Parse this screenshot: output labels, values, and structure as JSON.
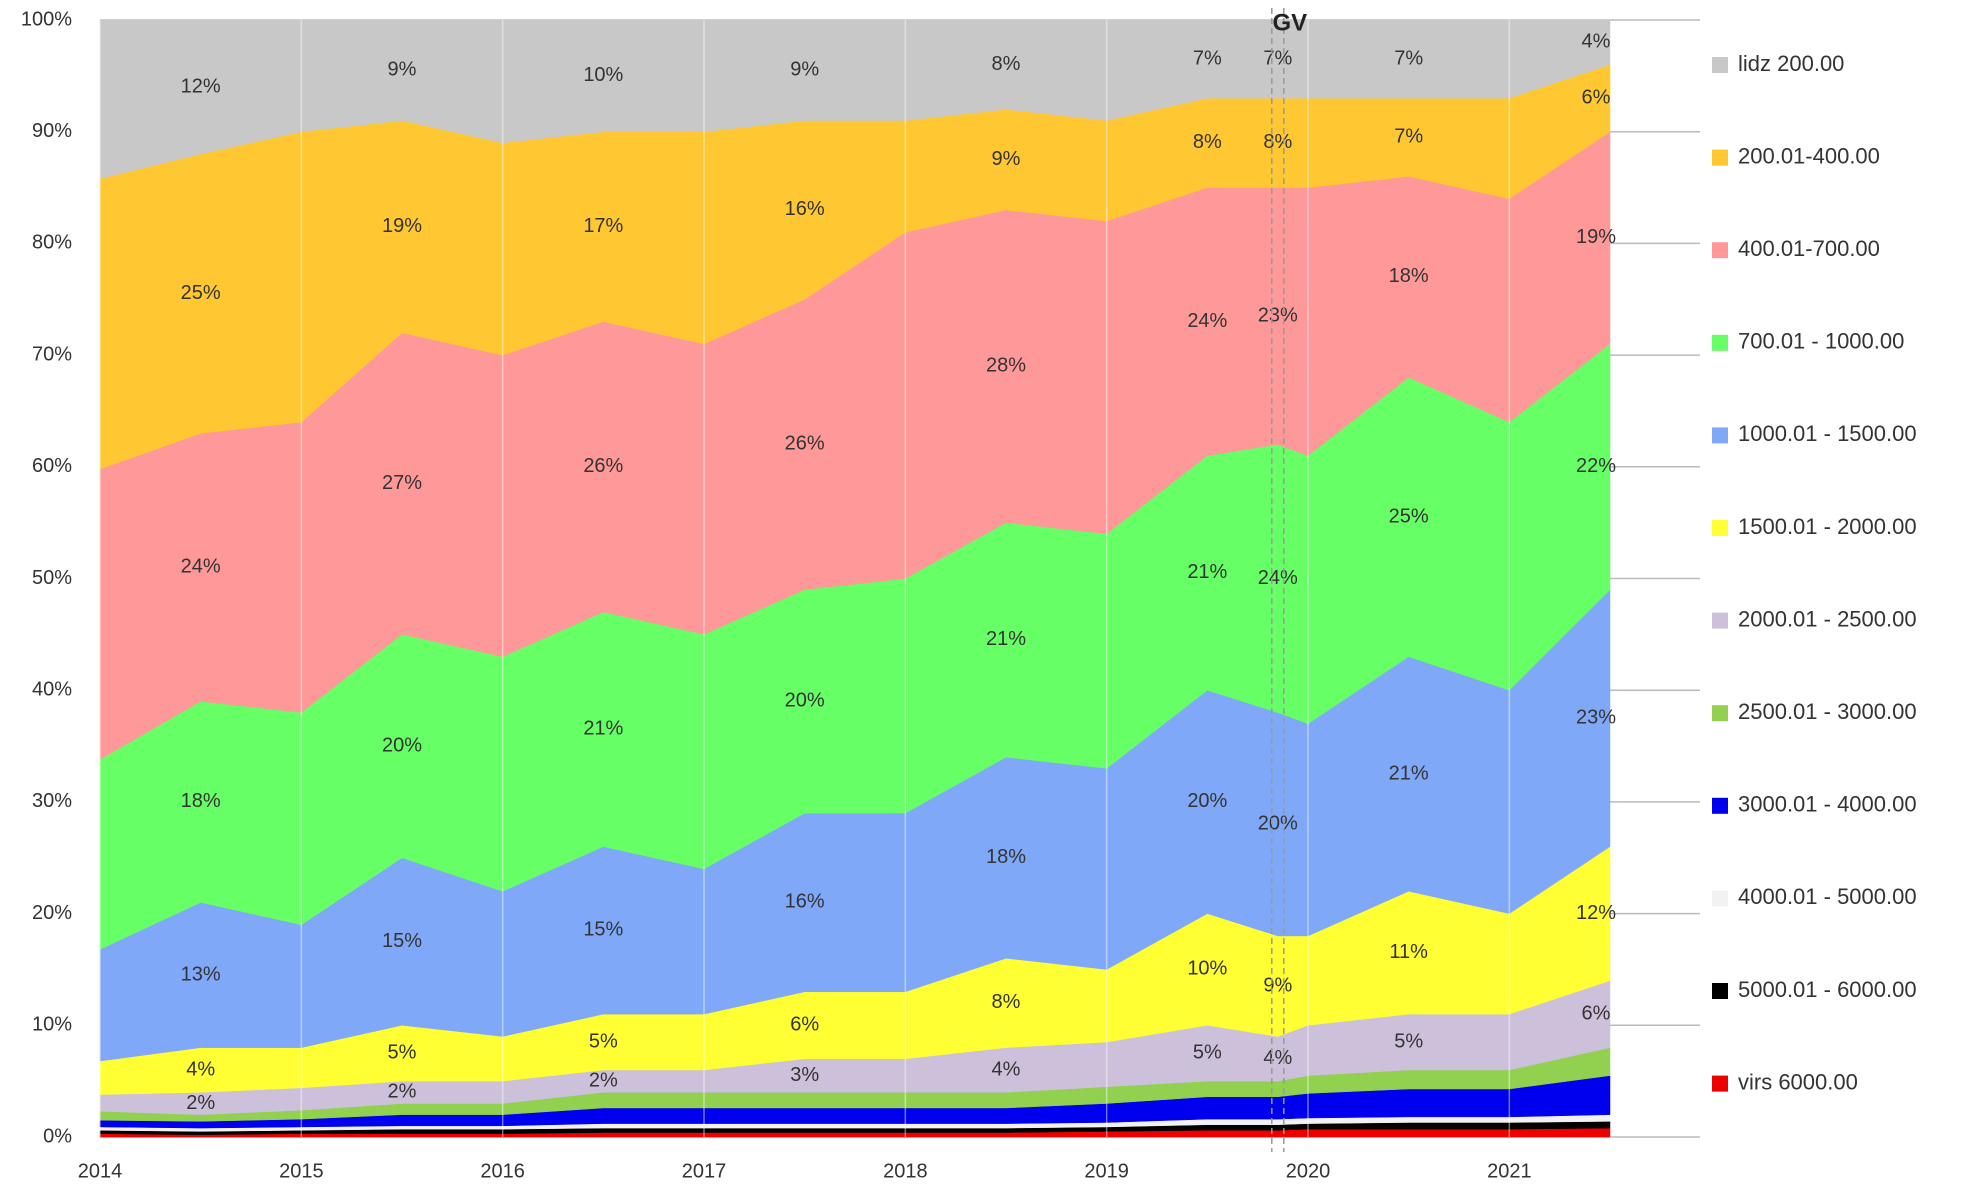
{
  "chart_data": {
    "type": "stacked_area",
    "x": [
      2014,
      2014.5,
      2015,
      2015.5,
      2016,
      2016.5,
      2017,
      2017.5,
      2018,
      2018.5,
      2019,
      2019.5,
      2019.85,
      2020,
      2020.5,
      2021,
      2021.5
    ],
    "series": [
      {
        "name": "virs 6000.00",
        "color": "#ee0000",
        "values": [
          0.3,
          0.2,
          0.3,
          0.3,
          0.3,
          0.4,
          0.4,
          0.4,
          0.4,
          0.4,
          0.5,
          0.6,
          0.6,
          0.7,
          0.7,
          0.7,
          0.8
        ]
      },
      {
        "name": "5000.01 - 6000.00",
        "color": "#000000",
        "values": [
          0.3,
          0.3,
          0.3,
          0.4,
          0.4,
          0.4,
          0.4,
          0.4,
          0.4,
          0.4,
          0.4,
          0.5,
          0.5,
          0.5,
          0.6,
          0.6,
          0.6
        ]
      },
      {
        "name": "4000.01 - 5000.00",
        "color": "#f2f2f2",
        "values": [
          0.3,
          0.3,
          0.3,
          0.3,
          0.3,
          0.4,
          0.4,
          0.4,
          0.4,
          0.4,
          0.4,
          0.5,
          0.5,
          0.5,
          0.5,
          0.5,
          0.6
        ]
      },
      {
        "name": "3000.01 - 4000.00",
        "color": "#0000ee",
        "values": [
          0.6,
          0.6,
          0.7,
          1,
          1,
          1.4,
          1.4,
          1.4,
          1.4,
          1.4,
          1.7,
          2,
          2,
          2.2,
          2.5,
          2.5,
          3.5
        ]
      },
      {
        "name": "2500.01 - 3000.00",
        "color": "#92d050",
        "values": [
          0.8,
          0.6,
          0.8,
          1,
          1,
          1.4,
          1.4,
          1.4,
          1.4,
          1.4,
          1.5,
          1.4,
          1.4,
          1.6,
          1.7,
          1.7,
          2.5
        ]
      },
      {
        "name": "2000.01 - 2500.00",
        "color": "#ccc0da",
        "values": [
          1.5,
          2,
          2,
          2,
          2,
          2,
          2,
          3,
          3,
          4,
          4,
          5,
          4,
          4.5,
          5,
          5,
          6
        ],
        "value_labels": [
          null,
          "2%",
          null,
          "2%",
          null,
          "2%",
          null,
          "3%",
          null,
          "4%",
          null,
          "5%",
          "4%",
          null,
          "5%",
          null,
          "6%"
        ]
      },
      {
        "name": "1500.01 - 2000.00",
        "color": "#ffff33",
        "values": [
          3,
          4,
          3.6,
          5,
          4,
          5,
          5,
          6,
          6,
          8,
          6.5,
          10,
          9,
          8,
          11,
          9,
          12
        ],
        "value_labels": [
          null,
          "4%",
          null,
          "5%",
          null,
          "5%",
          null,
          "6%",
          null,
          "8%",
          null,
          "10%",
          "9%",
          null,
          "11%",
          null,
          "12%"
        ]
      },
      {
        "name": "1000.01 - 1500.00",
        "color": "#80a8f8",
        "values": [
          10,
          13,
          11,
          15,
          13,
          15,
          13,
          16,
          16,
          18,
          18,
          20,
          20,
          19,
          21,
          20,
          23
        ],
        "value_labels": [
          null,
          "13%",
          null,
          "15%",
          null,
          "15%",
          null,
          "16%",
          null,
          "18%",
          null,
          "20%",
          "20%",
          null,
          "21%",
          null,
          "23%"
        ]
      },
      {
        "name": "700.01 - 1000.00",
        "color": "#66ff66",
        "values": [
          17,
          18,
          19,
          20,
          21,
          21,
          21,
          20,
          21,
          21,
          21,
          21,
          24,
          24,
          25,
          24,
          22
        ],
        "value_labels": [
          null,
          "18%",
          null,
          "20%",
          null,
          "21%",
          null,
          "20%",
          null,
          "21%",
          null,
          "21%",
          "24%",
          null,
          "25%",
          null,
          "22%"
        ]
      },
      {
        "name": "400.01-700.00",
        "color": "#ff9999",
        "values": [
          26,
          24,
          26,
          27,
          27,
          26,
          26,
          26,
          31,
          28,
          28,
          24,
          23,
          24,
          18,
          20,
          19
        ],
        "value_labels": [
          null,
          "24%",
          null,
          "27%",
          null,
          "26%",
          null,
          "26%",
          null,
          "28%",
          null,
          "24%",
          "23%",
          null,
          "18%",
          null,
          "19%"
        ]
      },
      {
        "name": "200.01-400.00",
        "color": "#ffc832",
        "values": [
          26,
          25,
          26,
          19,
          19,
          17,
          19,
          16,
          10,
          9,
          9,
          8,
          8,
          8,
          7,
          9,
          6
        ],
        "value_labels": [
          null,
          "25%",
          null,
          "19%",
          null,
          "17%",
          null,
          "16%",
          null,
          "9%",
          null,
          "8%",
          "8%",
          null,
          "7%",
          null,
          "6%"
        ]
      },
      {
        "name": "lidz 200.00",
        "color": "#c8c8c8",
        "values": [
          14.2,
          12,
          10,
          9,
          11,
          10,
          10,
          9,
          9,
          8,
          9,
          7,
          7,
          7,
          7,
          7,
          4
        ],
        "value_labels": [
          null,
          "12%",
          null,
          "9%",
          null,
          "10%",
          null,
          "9%",
          null,
          "8%",
          null,
          "7%",
          "7%",
          null,
          "7%",
          null,
          "4%"
        ]
      }
    ],
    "annotations": [
      {
        "text": "GV",
        "x": 2019.85
      }
    ],
    "xlim": [
      2014,
      2021.5
    ],
    "xticks": [
      2014,
      2015,
      2016,
      2017,
      2018,
      2019,
      2020,
      2021
    ],
    "ylim": [
      0,
      100
    ],
    "yticks": [
      {
        "value": 0,
        "label": "0%"
      },
      {
        "value": 10,
        "label": "10%"
      },
      {
        "value": 20,
        "label": "20%"
      },
      {
        "value": 30,
        "label": "30%"
      },
      {
        "value": 40,
        "label": "40%"
      },
      {
        "value": 50,
        "label": "50%"
      },
      {
        "value": 60,
        "label": "60%"
      },
      {
        "value": 70,
        "label": "70%"
      },
      {
        "value": 80,
        "label": "80%"
      },
      {
        "value": 90,
        "label": "90%"
      },
      {
        "value": 100,
        "label": "100%"
      }
    ],
    "grid": true,
    "legend": "right"
  }
}
